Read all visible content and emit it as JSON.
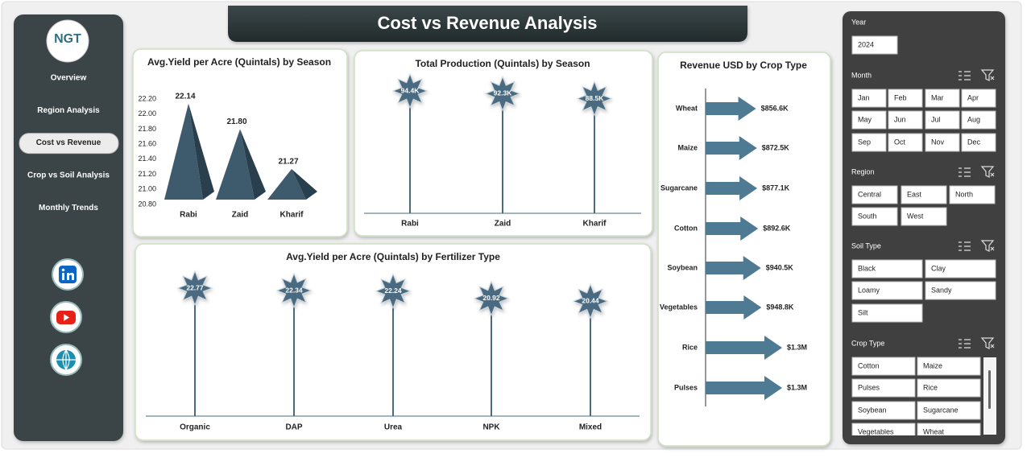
{
  "sidebar": {
    "logo": "NGT",
    "nav": [
      "Overview",
      "Region Analysis",
      "Cost vs Revenue",
      "Crop vs Soil Analysis",
      "Monthly Trends"
    ],
    "active_nav": 2
  },
  "header": {
    "title": "Cost vs Revenue Analysis"
  },
  "chart_data": [
    {
      "type": "bar",
      "shape": "pyramid",
      "title": "Avg.Yield per Acre (Quintals) by Season",
      "categories": [
        "Rabi",
        "Zaid",
        "Kharif"
      ],
      "values": [
        22.14,
        21.8,
        21.27
      ],
      "value_labels": [
        "22.14",
        "21.80",
        "21.27"
      ],
      "color": "#3e5b6e",
      "ylim": [
        20.8,
        22.2
      ],
      "yticks": [
        {
          "value": 20.8,
          "label": "20.80"
        },
        {
          "value": 21.0,
          "label": "21.00"
        },
        {
          "value": 21.2,
          "label": "21.20"
        },
        {
          "value": 21.4,
          "label": "21.40"
        },
        {
          "value": 21.6,
          "label": "21.60"
        },
        {
          "value": 21.8,
          "label": "21.80"
        },
        {
          "value": 22.0,
          "label": "22.00"
        },
        {
          "value": 22.2,
          "label": "22.20"
        }
      ]
    },
    {
      "type": "lollipop",
      "title": "Total Production (Quintals) by Season",
      "categories": [
        "Rabi",
        "Zaid",
        "Kharif"
      ],
      "values": [
        94400,
        92300,
        88500
      ],
      "value_labels": [
        "94.4K",
        "92.3K",
        "88.5K"
      ],
      "color": "#4a6b80"
    },
    {
      "type": "lollipop",
      "title": "Avg.Yield per Acre (Quintals) by Fertilizer Type",
      "categories": [
        "Organic",
        "DAP",
        "Urea",
        "NPK",
        "Mixed"
      ],
      "values": [
        22.77,
        22.34,
        22.24,
        20.92,
        20.44
      ],
      "value_labels": [
        "22.77",
        "22.34",
        "22.24",
        "20.92",
        "20.44"
      ],
      "color": "#4a6b80"
    },
    {
      "type": "bar",
      "shape": "arrow",
      "orientation": "horizontal",
      "title": "Revenue USD by Crop Type",
      "categories": [
        "Wheat",
        "Maize",
        "Sugarcane",
        "Cotton",
        "Soybean",
        "Vegetables",
        "Rice",
        "Pulses"
      ],
      "values": [
        856600,
        872500,
        877100,
        892600,
        940500,
        948800,
        1300000,
        1300000
      ],
      "value_labels": [
        "$856.6K",
        "$872.5K",
        "$877.1K",
        "$892.6K",
        "$940.5K",
        "$948.8K",
        "$1.3M",
        "$1.3M"
      ],
      "color": "#4f7a93"
    }
  ],
  "slicers": [
    {
      "title": "Year",
      "items": [
        "2024"
      ]
    },
    {
      "title": "Month",
      "items": [
        "Jan",
        "Feb",
        "Mar",
        "Apr",
        "May",
        "Jun",
        "Jul",
        "Aug",
        "Sep",
        "Oct",
        "Nov",
        "Dec"
      ]
    },
    {
      "title": "Region",
      "items": [
        "Central",
        "East",
        "North",
        "South",
        "West"
      ]
    },
    {
      "title": "Soil Type",
      "items": [
        "Black",
        "Clay",
        "Loamy",
        "Sandy",
        "Silt"
      ]
    },
    {
      "title": "Crop Type",
      "items": [
        "Cotton",
        "Maize",
        "Pulses",
        "Rice",
        "Soybean",
        "Sugarcane",
        "Vegetables",
        "Wheat"
      ]
    }
  ]
}
